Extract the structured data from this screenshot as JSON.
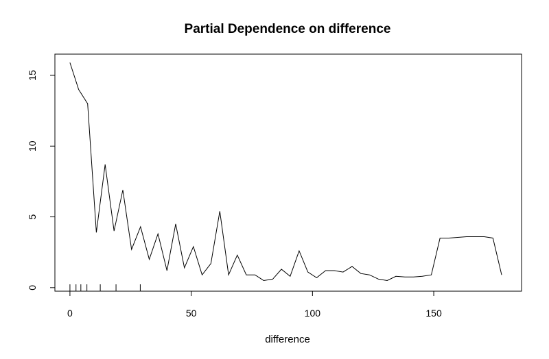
{
  "chart_data": {
    "type": "line",
    "title": "Partial Dependence on difference",
    "xlabel": "difference",
    "ylabel": "",
    "xlim": [
      -6.2,
      186.2
    ],
    "ylim": [
      -0.25,
      16.5
    ],
    "grid": false,
    "legend": "none",
    "x_ticks": [
      0,
      50,
      100,
      150
    ],
    "y_ticks": [
      0,
      5,
      10,
      15
    ],
    "series": [
      {
        "x": [
          0,
          3.6,
          7.3,
          10.9,
          14.5,
          18.2,
          21.8,
          25.4,
          29.1,
          32.7,
          36.3,
          40,
          43.6,
          47.2,
          50.9,
          54.5,
          58.1,
          61.8,
          65.4,
          69,
          72.7,
          76.3,
          79.9,
          83.6,
          87.2,
          90.8,
          94.5,
          98.1,
          101.7,
          105.4,
          109,
          112.6,
          116.3,
          119.9,
          123.5,
          127.2,
          130.8,
          134.4,
          138.1,
          141.7,
          145.3,
          149,
          152.6,
          156.2,
          159.9,
          163.5,
          167.1,
          170.8,
          174.4,
          178
        ],
        "y": [
          15.9,
          14.0,
          13.0,
          3.9,
          8.7,
          4.0,
          6.9,
          2.7,
          4.3,
          2.0,
          3.8,
          1.2,
          4.5,
          1.4,
          2.9,
          0.9,
          1.7,
          5.4,
          0.9,
          2.3,
          0.9,
          0.9,
          0.5,
          0.6,
          1.3,
          0.8,
          2.6,
          1.1,
          0.7,
          1.2,
          1.2,
          1.1,
          1.5,
          1.0,
          0.9,
          0.6,
          0.5,
          0.8,
          0.75,
          0.75,
          0.8,
          0.9,
          3.5,
          3.5,
          3.55,
          3.6,
          3.6,
          3.6,
          3.5,
          0.9
        ]
      }
    ],
    "rug": [
      0,
      2.5,
      4.5,
      7,
      12.5,
      19,
      29
    ]
  }
}
